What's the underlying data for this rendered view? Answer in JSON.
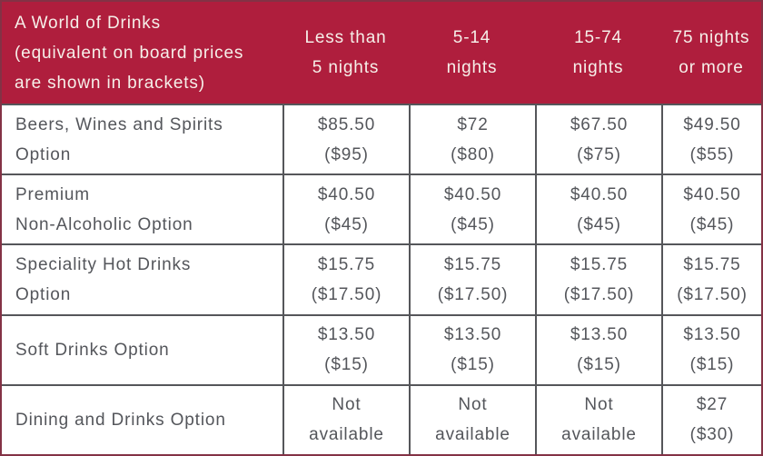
{
  "table": {
    "header": {
      "title": "A World of Drinks\n(equivalent on board prices\nare shown in brackets)",
      "columns": [
        "Less than\n5 nights",
        "5-14\nnights",
        "15-74\nnights",
        "75 nights\nor more"
      ]
    },
    "rows": [
      {
        "label": "Beers, Wines and Spirits\nOption",
        "values": [
          "$85.50\n($95)",
          "$72\n($80)",
          "$67.50\n($75)",
          "$49.50\n($55)"
        ]
      },
      {
        "label": "Premium\nNon-Alcoholic Option",
        "values": [
          "$40.50\n($45)",
          "$40.50\n($45)",
          "$40.50\n($45)",
          "$40.50\n($45)"
        ]
      },
      {
        "label": "Speciality Hot Drinks\nOption",
        "values": [
          "$15.75\n($17.50)",
          "$15.75\n($17.50)",
          "$15.75\n($17.50)",
          "$15.75\n($17.50)"
        ]
      },
      {
        "label": "Soft Drinks Option",
        "values": [
          "$13.50\n($15)",
          "$13.50\n($15)",
          "$13.50\n($15)",
          "$13.50\n($15)"
        ]
      },
      {
        "label": "Dining and Drinks Option",
        "values": [
          "Not\navailable",
          "Not\navailable",
          "Not\navailable",
          "$27\n($30)"
        ]
      }
    ]
  },
  "colors": {
    "header_background": "#af1e3d",
    "header_text": "#f6efe9",
    "body_text": "#54565b",
    "grid_line": "#55565a",
    "outer_border": "#833245"
  }
}
